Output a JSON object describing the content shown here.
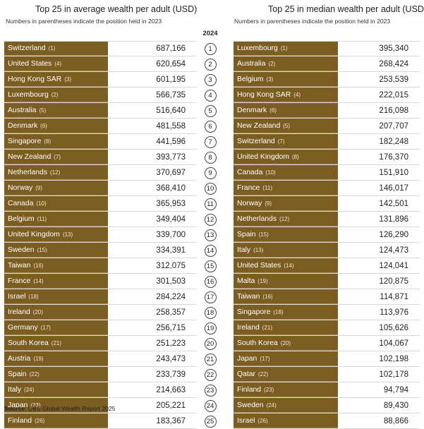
{
  "left_title": "Top 25 in average wealth per adult (USD)",
  "right_title": "Top 25 in median wealth per adult (USD)",
  "subtitle_left": "Numbers in parentheses indicate the position held in 2023",
  "subtitle_right": "Numbers in parentheses indicate the position held in 2023",
  "year_label": "2024",
  "ranks": [
    "1",
    "2",
    "3",
    "4",
    "5",
    "6",
    "7",
    "8",
    "9",
    "10",
    "11",
    "12",
    "13",
    "14",
    "15",
    "16",
    "17",
    "18",
    "19",
    "20",
    "21",
    "22",
    "23",
    "24",
    "25"
  ],
  "average_wealth": [
    {
      "country": "Switzerland",
      "prev": "(1)",
      "value": "687,166"
    },
    {
      "country": "United States",
      "prev": "(4)",
      "value": "620,654"
    },
    {
      "country": "Hong Kong SAR",
      "prev": "(3)",
      "value": "601,195"
    },
    {
      "country": "Luxembourg",
      "prev": "(2)",
      "value": "566,735"
    },
    {
      "country": "Australia",
      "prev": "(5)",
      "value": "516,640"
    },
    {
      "country": "Denmark",
      "prev": "(6)",
      "value": "481,558"
    },
    {
      "country": "Singapore",
      "prev": "(8)",
      "value": "441,596"
    },
    {
      "country": "New Zealand",
      "prev": "(7)",
      "value": "393,773"
    },
    {
      "country": "Netherlands",
      "prev": "(12)",
      "value": "370,697"
    },
    {
      "country": "Norway",
      "prev": "(9)",
      "value": "368,410"
    },
    {
      "country": "Canada",
      "prev": "(10)",
      "value": "365,953"
    },
    {
      "country": "Belgium",
      "prev": "(11)",
      "value": "349,404"
    },
    {
      "country": "United Kingdom",
      "prev": "(13)",
      "value": "339,700"
    },
    {
      "country": "Sweden",
      "prev": "(15)",
      "value": "334,391"
    },
    {
      "country": "Taiwan",
      "prev": "(16)",
      "value": "312,075"
    },
    {
      "country": "France",
      "prev": "(14)",
      "value": "301,503"
    },
    {
      "country": "Israel",
      "prev": "(18)",
      "value": "284,224"
    },
    {
      "country": "Ireland",
      "prev": "(20)",
      "value": "258,357"
    },
    {
      "country": "Germany",
      "prev": "(17)",
      "value": "256,715"
    },
    {
      "country": "South Korea",
      "prev": "(21)",
      "value": "251,223"
    },
    {
      "country": "Austria",
      "prev": "(19)",
      "value": "243,473"
    },
    {
      "country": "Spain",
      "prev": "(22)",
      "value": "233,739"
    },
    {
      "country": "Italy",
      "prev": "(24)",
      "value": "214,663"
    },
    {
      "country": "Japan",
      "prev": "(23)",
      "value": "205,221"
    },
    {
      "country": "Finland",
      "prev": "(26)",
      "value": "183,367"
    }
  ],
  "median_wealth": [
    {
      "country": "Luxembourg",
      "prev": "(1)",
      "value": "395,340"
    },
    {
      "country": "Australia",
      "prev": "(2)",
      "value": "268,424"
    },
    {
      "country": "Belgium",
      "prev": "(3)",
      "value": "253,539"
    },
    {
      "country": "Hong Kong SAR",
      "prev": "(4)",
      "value": "222,015"
    },
    {
      "country": "Denmark",
      "prev": "(6)",
      "value": "216,098"
    },
    {
      "country": "New Zealand",
      "prev": "(5)",
      "value": "207,707"
    },
    {
      "country": "Switzerland",
      "prev": "(7)",
      "value": "182,248"
    },
    {
      "country": "United Kingdom",
      "prev": "(8)",
      "value": "176,370"
    },
    {
      "country": "Canada",
      "prev": "(10)",
      "value": "151,910"
    },
    {
      "country": "France",
      "prev": "(11)",
      "value": "146,017"
    },
    {
      "country": "Norway",
      "prev": "(9)",
      "value": "142,501"
    },
    {
      "country": "Netherlands",
      "prev": "(12)",
      "value": "131,896"
    },
    {
      "country": "Spain",
      "prev": "(15)",
      "value": "126,290"
    },
    {
      "country": "Italy",
      "prev": "(13)",
      "value": "124,473"
    },
    {
      "country": "United States",
      "prev": "(14)",
      "value": "124,041"
    },
    {
      "country": "Malta",
      "prev": "(19)",
      "value": "120,875"
    },
    {
      "country": "Taiwan",
      "prev": "(16)",
      "value": "114,871"
    },
    {
      "country": "Singapore",
      "prev": "(18)",
      "value": "113,976"
    },
    {
      "country": "Ireland",
      "prev": "(21)",
      "value": "105,626"
    },
    {
      "country": "South Korea",
      "prev": "(20)",
      "value": "104,067"
    },
    {
      "country": "Japan",
      "prev": "(17)",
      "value": "102,198"
    },
    {
      "country": "Qatar",
      "prev": "(22)",
      "value": "102,178"
    },
    {
      "country": "Finland",
      "prev": "(23)",
      "value": "94,794"
    },
    {
      "country": "Sweden",
      "prev": "(24)",
      "value": "89,430"
    },
    {
      "country": "Israel",
      "prev": "(26)",
      "value": "88,866"
    }
  ],
  "source_label": "Source",
  "source_text": ": UBS Global Wealth Report 2025",
  "colors": {
    "country_fill": "#7c5d21",
    "country_text": "#ffffff"
  }
}
